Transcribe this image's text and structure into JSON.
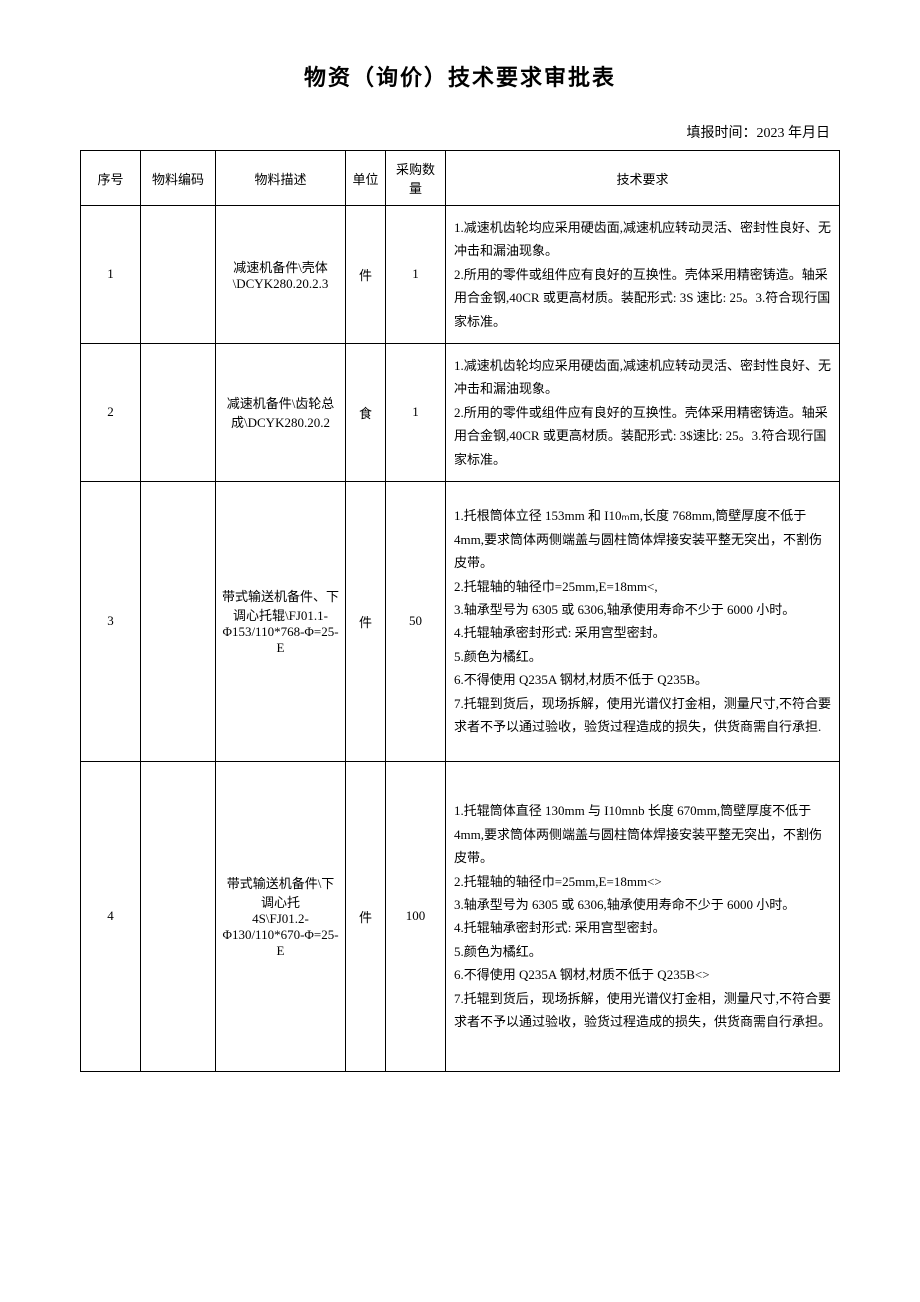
{
  "title": "物资（询价）技术要求审批表",
  "report_time_label": "填报时间：",
  "report_time_value": "2023 年月日",
  "table": {
    "headers": {
      "seq": "序号",
      "code": "物料编码",
      "desc": "物料描述",
      "unit": "单位",
      "qty": "采购数量",
      "req": "技术要求"
    },
    "rows": [
      {
        "seq": "1",
        "code": "",
        "desc": "减速机备件\\壳体\\DCYK280.20.2.3",
        "unit": "件",
        "qty": "1",
        "req": "1.减速机齿轮均应采用硬齿面,减速机应转动灵活、密封性良好、无冲击和漏油现象。\n2.所用的零件或组件应有良好的互换性。壳体采用精密铸造。轴采用合金钢,40CR 或更高材质。装配形式: 3S 速比: 25。3.符合现行国家标准。"
      },
      {
        "seq": "2",
        "code": "",
        "desc": "减速机备件\\齿轮总成\\DCYK280.20.2",
        "unit": "食",
        "qty": "1",
        "req": "1.减速机齿轮均应采用硬齿面,减速机应转动灵活、密封性良好、无冲击和漏油现象。\n2.所用的零件或组件应有良好的互换性。壳体采用精密铸造。轴采用合金钢,40CR 或更高材质。装配形式: 3$速比: 25。3.符合现行国家标准。"
      },
      {
        "seq": "3",
        "code": "",
        "desc": "带式输送机备件、下调心托辊\\FJ01.1-Φ153/110*768-Φ=25-E",
        "unit": "件",
        "qty": "50",
        "req": "1.托根筒体立径 153mm 和 I10ₘm,长度 768mm,筒壁厚度不低于 4mm,要求筒体两侧端盖与圆柱筒体焊接安装平整无突出，不割伤皮带。\n2.托辊轴的轴径巾=25mm,E=18mm<,\n3.轴承型号为 6305 或 6306,轴承使用寿命不少于 6000 小时。\n4.托辊轴承密封形式: 采用宫型密封。\n5.颜色为橘红。\n6.不得使用 Q235A 钢材,材质不低于 Q235B。\n7.托辊到货后，现场拆解，使用光谱仪打金相，测量尺寸,不符合要求者不予以通过验收，验货过程造成的损失，供货商需自行承担."
      },
      {
        "seq": "4",
        "code": "",
        "desc": "带式输送机备件\\下调心托\n4S\\FJ01.2-Φ130/110*670-Φ=25-E",
        "unit": "件",
        "qty": "100",
        "req": "1.托辊筒体直径 130mm 与 I10mnb 长度 670mm,筒壁厚度不低于 4mm,要求筒体两侧端盖与圆柱筒体焊接安装平整无突出，不割伤皮带。\n2.托辊轴的轴径巾=25mm,E=18mm<>\n3.轴承型号为 6305 或 6306,轴承使用寿命不少于 6000 小时。\n4.托辊轴承密封形式: 采用宫型密封。\n5.颜色为橘红。\n6.不得使用 Q235A 钢材,材质不低于 Q235B<>\n7.托辊到货后，现场拆解，使用光谱仪打金相，测量尺寸,不符合要求者不予以通过验收，验货过程造成的损失，供货商需自行承担。"
      }
    ]
  },
  "styling": {
    "background_color": "#ffffff",
    "border_color": "#000000",
    "title_fontsize": 22,
    "body_fontsize": 13,
    "font_family": "SimSun",
    "col_widths": {
      "seq": 60,
      "code": 75,
      "desc": 130,
      "unit": 40,
      "qty": 60
    }
  }
}
